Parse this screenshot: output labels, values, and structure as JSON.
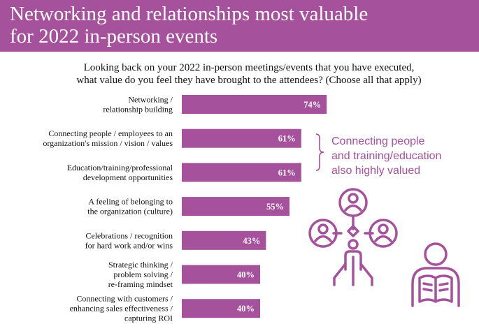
{
  "title": "Networking and relationships most valuable\nfor 2022 in-person events",
  "question": "Looking back on your 2022 in-person meetings/events that you have executed,\nwhat value do you feel they have brought to the attendees? (Choose all that apply)",
  "callout": "Connecting people\nand training/education\nalso highly valued",
  "colors": {
    "accent": "#a5519b",
    "bar": "#a5519b"
  },
  "icons": [
    "brace-icon",
    "people-network-icon",
    "person-reading-icon"
  ],
  "chart_data": {
    "type": "bar",
    "orientation": "horizontal",
    "categories": [
      [
        "Networking /",
        "relationship building"
      ],
      [
        "Connecting people / employees to an",
        "organization's mission / vision / values"
      ],
      [
        "Education/training/professional",
        "development opportunities"
      ],
      [
        "A feeling of belonging to",
        "the organization (culture)"
      ],
      [
        "Celebrations / recognition",
        "for hard work and/or wins"
      ],
      [
        "Strategic thinking /",
        "problem solving /",
        "re-framing mindset"
      ],
      [
        "Connecting with customers /",
        "enhancing sales effectiveness /",
        "capturing ROI"
      ]
    ],
    "values": [
      74,
      61,
      61,
      55,
      43,
      40,
      40
    ],
    "value_labels": [
      "74%",
      "61%",
      "61%",
      "55%",
      "43%",
      "40%",
      "40%"
    ],
    "unit": "%",
    "xlim": [
      0,
      100
    ],
    "grid": false,
    "legend": "none"
  }
}
